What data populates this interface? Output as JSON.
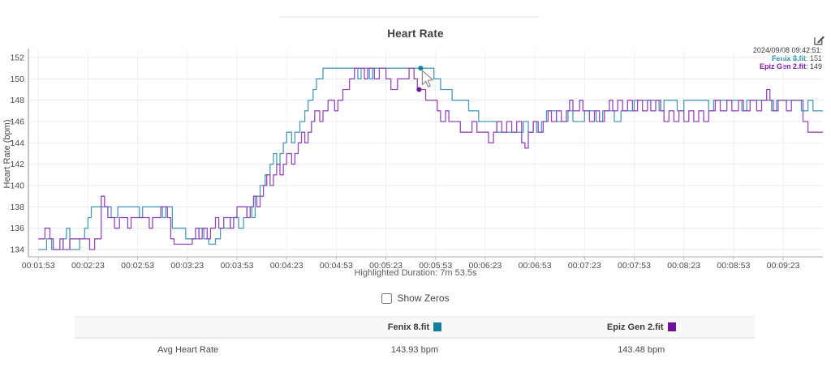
{
  "header": {
    "title": "Heart Rate",
    "edit_icon": "edit-chart-icon"
  },
  "tooltip": {
    "timestamp": "2024/09/08 09:42:51:",
    "series": [
      {
        "label": "Fenix 8.fit",
        "separator": ":  ",
        "value": "151",
        "color": "#17809e"
      },
      {
        "label": "Epiz Gen 2.fit",
        "separator": ":  ",
        "value": "149",
        "color": "#7d17ad"
      }
    ]
  },
  "chart_data": {
    "type": "line",
    "title": "Heart Rate",
    "xlabel": "",
    "ylabel": "Heart Rate (bpm)",
    "ylim": [
      133,
      153
    ],
    "yticks": [
      134,
      136,
      138,
      140,
      142,
      144,
      146,
      148,
      150,
      152
    ],
    "x_domain_seconds": [
      107,
      587
    ],
    "xtick_seconds": [
      113,
      143,
      173,
      203,
      233,
      263,
      293,
      323,
      353,
      383,
      413,
      443,
      473,
      503,
      533,
      563
    ],
    "xtick_labels": [
      "00:01:53",
      "00:02:23",
      "00:02:53",
      "00:03:23",
      "00:03:53",
      "00:04:23",
      "00:04:53",
      "00:05:23",
      "00:05:53",
      "00:06:23",
      "00:06:53",
      "00:07:23",
      "00:07:53",
      "00:08:23",
      "00:08:53",
      "00:09:23"
    ],
    "grid": true,
    "legend_position": "table-below",
    "series": [
      {
        "name": "Fenix 8.fit",
        "color": "#4a9cb5",
        "swatch": "#16809c",
        "points": [
          [
            113,
            134
          ],
          [
            118,
            135
          ],
          [
            121,
            134
          ],
          [
            128,
            135
          ],
          [
            130,
            136
          ],
          [
            132,
            134
          ],
          [
            138,
            135
          ],
          [
            141,
            136
          ],
          [
            143,
            137
          ],
          [
            145,
            138
          ],
          [
            155,
            138
          ],
          [
            157,
            137
          ],
          [
            161,
            138
          ],
          [
            172,
            138
          ],
          [
            174,
            137
          ],
          [
            176,
            138
          ],
          [
            186,
            138
          ],
          [
            188,
            137
          ],
          [
            190,
            138
          ],
          [
            194,
            136
          ],
          [
            200,
            136
          ],
          [
            202,
            135
          ],
          [
            208,
            135
          ],
          [
            210,
            136
          ],
          [
            213,
            135
          ],
          [
            216,
            134.5
          ],
          [
            220,
            135
          ],
          [
            223,
            136
          ],
          [
            227,
            136
          ],
          [
            229,
            137
          ],
          [
            232,
            137
          ],
          [
            234,
            136
          ],
          [
            237,
            137
          ],
          [
            239,
            138
          ],
          [
            242,
            137
          ],
          [
            244,
            139
          ],
          [
            247,
            140
          ],
          [
            250,
            141
          ],
          [
            253,
            142
          ],
          [
            255,
            143
          ],
          [
            257,
            142
          ],
          [
            259,
            143
          ],
          [
            261,
            144
          ],
          [
            263,
            145
          ],
          [
            266,
            144
          ],
          [
            268,
            145
          ],
          [
            271,
            146
          ],
          [
            274,
            147
          ],
          [
            276,
            148
          ],
          [
            279,
            149
          ],
          [
            281,
            150
          ],
          [
            285,
            151
          ],
          [
            305,
            151
          ],
          [
            306,
            150
          ],
          [
            308,
            151
          ],
          [
            313,
            150
          ],
          [
            315,
            151
          ],
          [
            350,
            151
          ],
          [
            352,
            150
          ],
          [
            356,
            149
          ],
          [
            361,
            149
          ],
          [
            363,
            148
          ],
          [
            371,
            148
          ],
          [
            373,
            147
          ],
          [
            377,
            147
          ],
          [
            379,
            146
          ],
          [
            388,
            146
          ],
          [
            390,
            145
          ],
          [
            404,
            145
          ],
          [
            406,
            146
          ],
          [
            409,
            145
          ],
          [
            412,
            146
          ],
          [
            414,
            145
          ],
          [
            417,
            146
          ],
          [
            420,
            147
          ],
          [
            424,
            147
          ],
          [
            426,
            146
          ],
          [
            431,
            146
          ],
          [
            433,
            147
          ],
          [
            436,
            146
          ],
          [
            441,
            146
          ],
          [
            443,
            147
          ],
          [
            448,
            147
          ],
          [
            450,
            146
          ],
          [
            454,
            147
          ],
          [
            459,
            147
          ],
          [
            461,
            146
          ],
          [
            465,
            147
          ],
          [
            471,
            147
          ],
          [
            473,
            148
          ],
          [
            486,
            148
          ],
          [
            488,
            147
          ],
          [
            491,
            148
          ],
          [
            497,
            148
          ],
          [
            499,
            147
          ],
          [
            503,
            148
          ],
          [
            516,
            148
          ],
          [
            518,
            147
          ],
          [
            521,
            148
          ],
          [
            536,
            148
          ],
          [
            538,
            147
          ],
          [
            541,
            148
          ],
          [
            553,
            148
          ],
          [
            556,
            147
          ],
          [
            559,
            148
          ],
          [
            570,
            148
          ],
          [
            574,
            147
          ],
          [
            578,
            148
          ],
          [
            581,
            147
          ],
          [
            587,
            147
          ]
        ]
      },
      {
        "name": "Epiz Gen 2.fit",
        "color": "#9549bb",
        "swatch": "#6e10a2",
        "points": [
          [
            113,
            135
          ],
          [
            117,
            136
          ],
          [
            120,
            135
          ],
          [
            122,
            134
          ],
          [
            126,
            135
          ],
          [
            128,
            134
          ],
          [
            132,
            135
          ],
          [
            142,
            135
          ],
          [
            144,
            134
          ],
          [
            147,
            135
          ],
          [
            151,
            139
          ],
          [
            153,
            138
          ],
          [
            155,
            137
          ],
          [
            159,
            136
          ],
          [
            162,
            137
          ],
          [
            167,
            136
          ],
          [
            169,
            137
          ],
          [
            180,
            136
          ],
          [
            182,
            137
          ],
          [
            187,
            138
          ],
          [
            191,
            137
          ],
          [
            193,
            135
          ],
          [
            195,
            134.5
          ],
          [
            204,
            134.5
          ],
          [
            206,
            135
          ],
          [
            208,
            136
          ],
          [
            210,
            135
          ],
          [
            212,
            136
          ],
          [
            215,
            135
          ],
          [
            217,
            136
          ],
          [
            220,
            137
          ],
          [
            222,
            136
          ],
          [
            225,
            137
          ],
          [
            229,
            136
          ],
          [
            231,
            137
          ],
          [
            233,
            138
          ],
          [
            237,
            138
          ],
          [
            239,
            137
          ],
          [
            241,
            138
          ],
          [
            243,
            139
          ],
          [
            245,
            138
          ],
          [
            247,
            139
          ],
          [
            249,
            140
          ],
          [
            251,
            141
          ],
          [
            253,
            140
          ],
          [
            255,
            141
          ],
          [
            257,
            142
          ],
          [
            259,
            141
          ],
          [
            261,
            142
          ],
          [
            263,
            143
          ],
          [
            266,
            142
          ],
          [
            268,
            143
          ],
          [
            270,
            144
          ],
          [
            272,
            145
          ],
          [
            274,
            144
          ],
          [
            276,
            145
          ],
          [
            278,
            146
          ],
          [
            280,
            147
          ],
          [
            283,
            146
          ],
          [
            285,
            147
          ],
          [
            288,
            148
          ],
          [
            292,
            147
          ],
          [
            294,
            148
          ],
          [
            297,
            149
          ],
          [
            301,
            150
          ],
          [
            304,
            151
          ],
          [
            308,
            151
          ],
          [
            310,
            150
          ],
          [
            312,
            151
          ],
          [
            316,
            150
          ],
          [
            319,
            151
          ],
          [
            323,
            150
          ],
          [
            326,
            149
          ],
          [
            330,
            150
          ],
          [
            335,
            150
          ],
          [
            337,
            151
          ],
          [
            340,
            150
          ],
          [
            342,
            149
          ],
          [
            347,
            148
          ],
          [
            352,
            148
          ],
          [
            354,
            147
          ],
          [
            356,
            146
          ],
          [
            359,
            147
          ],
          [
            361,
            146
          ],
          [
            366,
            146
          ],
          [
            368,
            145
          ],
          [
            373,
            145
          ],
          [
            375,
            146
          ],
          [
            378,
            145
          ],
          [
            383,
            145
          ],
          [
            385,
            144
          ],
          [
            388,
            145
          ],
          [
            390,
            146
          ],
          [
            393,
            145
          ],
          [
            396,
            146
          ],
          [
            399,
            145
          ],
          [
            402,
            146
          ],
          [
            405,
            144
          ],
          [
            407,
            143.5
          ],
          [
            409,
            145
          ],
          [
            412,
            146
          ],
          [
            415,
            145
          ],
          [
            418,
            146
          ],
          [
            421,
            147
          ],
          [
            423,
            146
          ],
          [
            426,
            147
          ],
          [
            429,
            146
          ],
          [
            432,
            147
          ],
          [
            434,
            148
          ],
          [
            436,
            147
          ],
          [
            440,
            148
          ],
          [
            442,
            147
          ],
          [
            446,
            146
          ],
          [
            449,
            147
          ],
          [
            452,
            146
          ],
          [
            455,
            147
          ],
          [
            458,
            148
          ],
          [
            460,
            147
          ],
          [
            463,
            148
          ],
          [
            466,
            147
          ],
          [
            469,
            148
          ],
          [
            472,
            147
          ],
          [
            475,
            148
          ],
          [
            478,
            147
          ],
          [
            481,
            148
          ],
          [
            483,
            147
          ],
          [
            486,
            148
          ],
          [
            489,
            147
          ],
          [
            491,
            146
          ],
          [
            494,
            147
          ],
          [
            497,
            146
          ],
          [
            500,
            147
          ],
          [
            503,
            146
          ],
          [
            506,
            147
          ],
          [
            509,
            146
          ],
          [
            512,
            147
          ],
          [
            515,
            146
          ],
          [
            518,
            147
          ],
          [
            522,
            148
          ],
          [
            525,
            147
          ],
          [
            529,
            148
          ],
          [
            532,
            147
          ],
          [
            536,
            148
          ],
          [
            539,
            147
          ],
          [
            543,
            148
          ],
          [
            547,
            147
          ],
          [
            550,
            148
          ],
          [
            553,
            149
          ],
          [
            555,
            148
          ],
          [
            557,
            147
          ],
          [
            560,
            148
          ],
          [
            565,
            147
          ],
          [
            568,
            148
          ],
          [
            572,
            148
          ],
          [
            575,
            146
          ],
          [
            578,
            145
          ],
          [
            587,
            145
          ]
        ]
      }
    ],
    "highlight": {
      "t": 344,
      "values": [
        151,
        149
      ]
    }
  },
  "footer": {
    "duration_text": "Highlighted Duration: 7m 53.5s",
    "show_zeros_label": "Show Zeros",
    "show_zeros_checked": false
  },
  "table": {
    "columns": [
      {
        "label": "Fenix 8.fit",
        "swatch": "#16809c"
      },
      {
        "label": "Epiz Gen 2.fit",
        "swatch": "#6e10a2"
      }
    ],
    "rows": [
      {
        "label": "Avg Heart Rate",
        "values": [
          "143.93 bpm",
          "143.48 bpm"
        ]
      }
    ]
  }
}
